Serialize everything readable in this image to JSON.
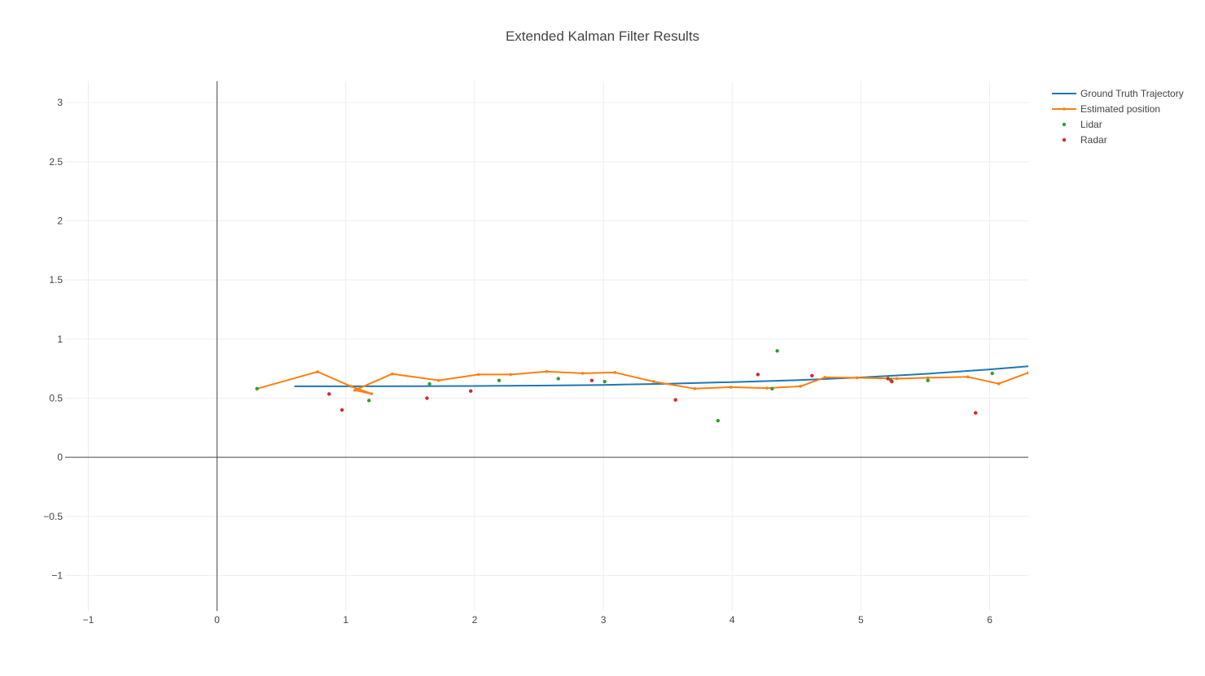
{
  "chart_data": {
    "type": "line",
    "title": "Extended Kalman Filter Results",
    "xlabel": "",
    "ylabel": "",
    "xlim": [
      -1.18,
      6.3
    ],
    "ylim": [
      -1.3,
      3.18
    ],
    "x_ticks": [
      -1,
      0,
      1,
      2,
      3,
      4,
      5,
      6
    ],
    "x_tick_labels": [
      "−1",
      "0",
      "1",
      "2",
      "3",
      "4",
      "5",
      "6"
    ],
    "y_ticks": [
      -1,
      -0.5,
      0,
      0.5,
      1,
      1.5,
      2,
      2.5,
      3
    ],
    "y_tick_labels": [
      "−1",
      "−0.5",
      "0",
      "0.5",
      "1",
      "1.5",
      "2",
      "2.5",
      "3"
    ],
    "grid": true,
    "legend_position": "top-right",
    "colors": {
      "ground_truth": "#1f77b4",
      "estimated": "#ff7f0e",
      "lidar": "#2ca02c",
      "radar": "#d62728"
    },
    "series": [
      {
        "name": "Ground Truth Trajectory",
        "mode": "lines",
        "x": [
          0.6,
          1.0,
          1.5,
          2.0,
          2.5,
          3.0,
          3.5,
          4.0,
          4.5,
          5.0,
          5.5,
          6.0,
          6.3
        ],
        "y": [
          0.6,
          0.6,
          0.601,
          0.603,
          0.606,
          0.612,
          0.622,
          0.636,
          0.652,
          0.675,
          0.705,
          0.743,
          0.77
        ]
      },
      {
        "name": "Estimated position",
        "mode": "lines+markers",
        "x": [
          0.31,
          0.78,
          1.04,
          1.2,
          1.07,
          1.36,
          1.72,
          2.03,
          2.28,
          2.56,
          2.84,
          3.09,
          3.39,
          3.71,
          3.99,
          4.27,
          4.53,
          4.72,
          4.97,
          5.28,
          5.52,
          5.83,
          6.07,
          6.3
        ],
        "y": [
          0.58,
          0.723,
          0.6,
          0.537,
          0.567,
          0.705,
          0.65,
          0.7,
          0.7,
          0.725,
          0.71,
          0.717,
          0.64,
          0.58,
          0.593,
          0.585,
          0.6,
          0.676,
          0.672,
          0.665,
          0.672,
          0.68,
          0.622,
          0.715
        ]
      },
      {
        "name": "Lidar",
        "mode": "markers",
        "x": [
          0.31,
          1.18,
          1.65,
          2.19,
          2.65,
          3.01,
          3.89,
          4.35,
          4.31,
          5.23,
          5.52,
          6.02
        ],
        "y": [
          0.58,
          0.48,
          0.62,
          0.65,
          0.665,
          0.64,
          0.31,
          0.9,
          0.58,
          0.655,
          0.65,
          0.71
        ]
      },
      {
        "name": "Radar",
        "mode": "markers",
        "x": [
          0.87,
          0.97,
          1.63,
          1.97,
          2.91,
          3.56,
          4.2,
          4.62,
          5.21,
          5.24,
          5.89
        ],
        "y": [
          0.535,
          0.4,
          0.5,
          0.56,
          0.65,
          0.485,
          0.7,
          0.69,
          0.665,
          0.64,
          0.375
        ]
      }
    ]
  }
}
